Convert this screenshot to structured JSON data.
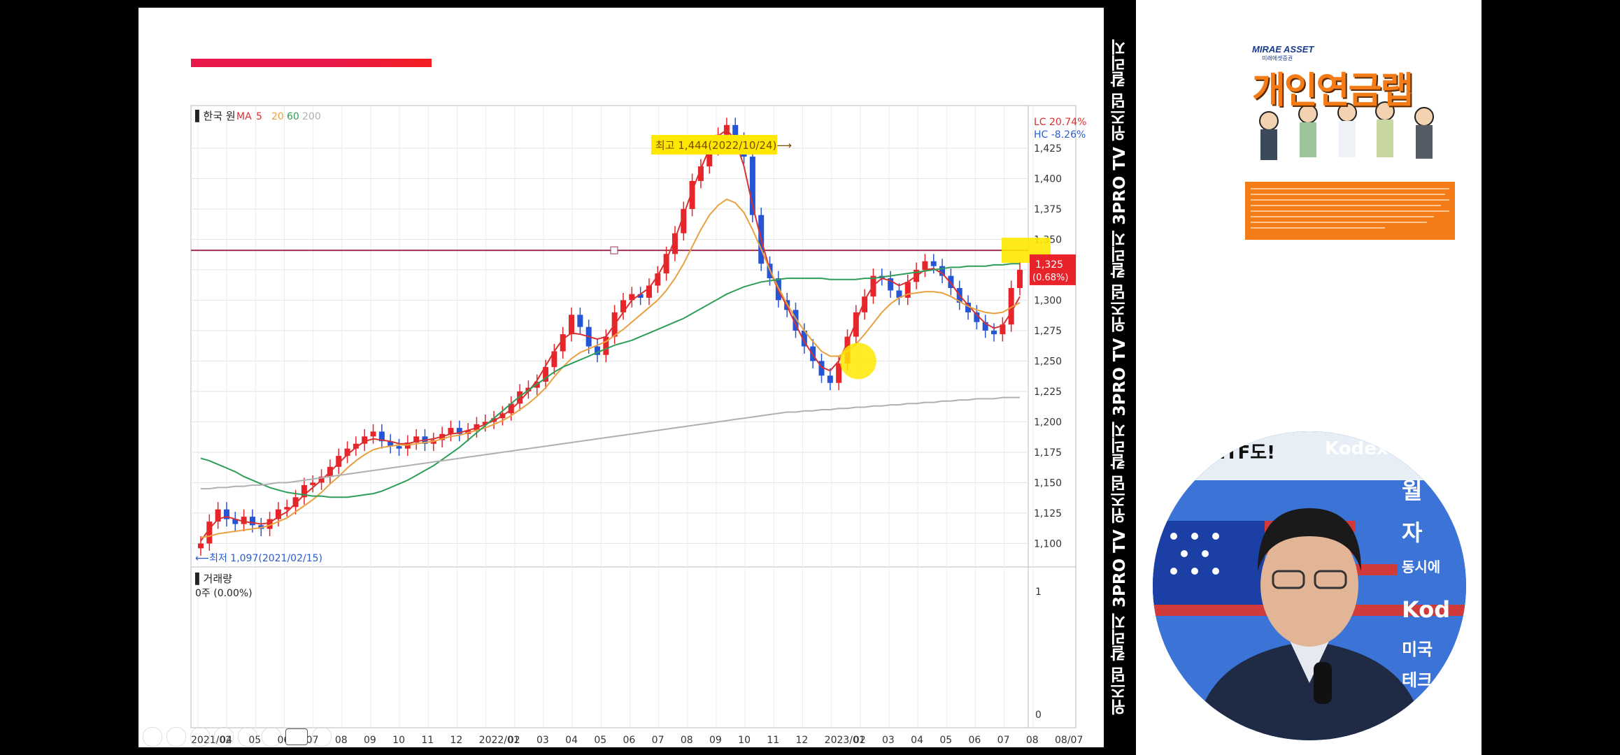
{
  "vertical_channel_text": "위즈덤 칼리지 3PRO TV 위즈덤 칼리지 3PRO TV 위즈덤 칼리지 3PRO TV 위즈덤 칼리지",
  "ad": {
    "brand": "MIRAE ASSET",
    "brand_sub": "미래에셋증권",
    "title": "개인연금랩"
  },
  "webcam": {
    "banner_text": "ETF도!",
    "banner_brand": "Kodex",
    "side_texts": [
      "월",
      "자",
      "동시에",
      "Kod",
      "미국",
      "테크"
    ]
  },
  "chart_data": {
    "type": "candlestick",
    "header": {
      "instrument": "한국 원",
      "ma_label": "MA",
      "ma_periods": [
        "5",
        "20",
        "60",
        "200"
      ],
      "ma_colors": [
        "#d93030",
        "#e8a040",
        "#2e9d5a",
        "#b0b0b0"
      ]
    },
    "lc_label": "LC 20.74%",
    "hc_label": "HC -8.26%",
    "annotation_high": "최고 1,444(2022/10/24)⟶",
    "annotation_low": "⟵최저 1,097(2021/02/15)",
    "ylim": [
      1083,
      1460
    ],
    "y_ticks": [
      "1,425",
      "1,400",
      "1,375",
      "1,350",
      "1,325",
      "1,300",
      "1,275",
      "1,250",
      "1,225",
      "1,200",
      "1,175",
      "1,150",
      "1,125",
      "1,100"
    ],
    "y_tick_values": [
      1425,
      1400,
      1375,
      1350,
      1325,
      1300,
      1275,
      1250,
      1225,
      1200,
      1175,
      1150,
      1125,
      1100
    ],
    "x_labels": [
      "2021/02",
      "04",
      "05",
      "06",
      "07",
      "08",
      "09",
      "10",
      "11",
      "12",
      "2022/01",
      "02",
      "03",
      "04",
      "05",
      "06",
      "07",
      "08",
      "09",
      "10",
      "11",
      "12",
      "2023/01",
      "02",
      "03",
      "04",
      "05",
      "06",
      "07",
      "08",
      "08/07"
    ],
    "horizontal_line_value": 1341,
    "price_box": {
      "value": "1,325",
      "change": "(0.68%)"
    },
    "closes": [
      1100,
      1118,
      1128,
      1120,
      1116,
      1122,
      1115,
      1112,
      1120,
      1128,
      1130,
      1138,
      1148,
      1150,
      1155,
      1163,
      1172,
      1178,
      1182,
      1188,
      1192,
      1184,
      1180,
      1178,
      1183,
      1188,
      1182,
      1185,
      1190,
      1195,
      1190,
      1193,
      1198,
      1200,
      1203,
      1207,
      1215,
      1225,
      1228,
      1233,
      1245,
      1258,
      1272,
      1288,
      1278,
      1262,
      1255,
      1270,
      1290,
      1300,
      1305,
      1302,
      1312,
      1322,
      1338,
      1355,
      1375,
      1398,
      1410,
      1425,
      1436,
      1444,
      1432,
      1418,
      1370,
      1330,
      1318,
      1300,
      1292,
      1275,
      1262,
      1250,
      1238,
      1232,
      1248,
      1270,
      1290,
      1303,
      1320,
      1318,
      1308,
      1302,
      1315,
      1325,
      1332,
      1328,
      1320,
      1310,
      1298,
      1290,
      1282,
      1275,
      1272,
      1280,
      1310,
      1325
    ],
    "ma_series": [
      {
        "period": "5",
        "values": [
          1102,
          1112,
          1120,
          1122,
          1120,
          1118,
          1117,
          1116,
          1117,
          1122,
          1126,
          1133,
          1140,
          1146,
          1152,
          1159,
          1166,
          1173,
          1179,
          1184,
          1186,
          1185,
          1184,
          1182,
          1182,
          1184,
          1185,
          1186,
          1188,
          1190,
          1191,
          1193,
          1195,
          1198,
          1201,
          1205,
          1210,
          1217,
          1225,
          1234,
          1246,
          1258,
          1268,
          1273,
          1272,
          1270,
          1268,
          1270,
          1280,
          1290,
          1300,
          1305,
          1310,
          1320,
          1333,
          1350,
          1370,
          1390,
          1408,
          1425,
          1435,
          1440,
          1432,
          1410,
          1378,
          1350,
          1325,
          1308,
          1295,
          1280,
          1266,
          1255,
          1245,
          1242,
          1250,
          1265,
          1282,
          1300,
          1312,
          1318,
          1316,
          1312,
          1315,
          1320,
          1325,
          1326,
          1322,
          1314,
          1304,
          1296,
          1288,
          1281,
          1277,
          1279,
          1290,
          1303
        ]
      },
      {
        "period": "20",
        "values": [
          1105,
          1106,
          1108,
          1109,
          1110,
          1111,
          1112,
          1113,
          1115,
          1118,
          1121,
          1126,
          1131,
          1136,
          1142,
          1149,
          1155,
          1162,
          1168,
          1173,
          1177,
          1179,
          1180,
          1181,
          1181,
          1182,
          1183,
          1184,
          1186,
          1188,
          1189,
          1191,
          1193,
          1195,
          1198,
          1201,
          1205,
          1210,
          1215,
          1221,
          1228,
          1237,
          1245,
          1252,
          1257,
          1260,
          1263,
          1266,
          1271,
          1276,
          1282,
          1288,
          1294,
          1300,
          1308,
          1318,
          1330,
          1344,
          1358,
          1370,
          1378,
          1383,
          1380,
          1372,
          1358,
          1342,
          1325,
          1310,
          1297,
          1285,
          1275,
          1266,
          1258,
          1254,
          1254,
          1258,
          1264,
          1272,
          1281,
          1290,
          1297,
          1302,
          1305,
          1306,
          1307,
          1307,
          1306,
          1303,
          1299,
          1295,
          1292,
          1290,
          1289,
          1290,
          1294,
          1298
        ]
      },
      {
        "period": "60",
        "values": [
          1170,
          1168,
          1165,
          1162,
          1159,
          1155,
          1152,
          1149,
          1146,
          1144,
          1142,
          1141,
          1140,
          1139,
          1139,
          1138,
          1138,
          1138,
          1139,
          1140,
          1141,
          1143,
          1146,
          1149,
          1152,
          1156,
          1160,
          1164,
          1169,
          1174,
          1179,
          1185,
          1191,
          1197,
          1203,
          1209,
          1215,
          1221,
          1226,
          1231,
          1236,
          1241,
          1245,
          1248,
          1251,
          1254,
          1257,
          1260,
          1263,
          1265,
          1267,
          1270,
          1273,
          1276,
          1279,
          1282,
          1285,
          1289,
          1293,
          1297,
          1301,
          1305,
          1308,
          1311,
          1313,
          1315,
          1316,
          1317,
          1318,
          1318,
          1318,
          1318,
          1318,
          1317,
          1317,
          1317,
          1317,
          1318,
          1318,
          1319,
          1320,
          1321,
          1322,
          1323,
          1324,
          1325,
          1326,
          1327,
          1327,
          1328,
          1328,
          1328,
          1329,
          1329,
          1330,
          1330
        ]
      },
      {
        "period": "200",
        "values": [
          1145,
          1145,
          1146,
          1146,
          1147,
          1147,
          1148,
          1148,
          1149,
          1150,
          1150,
          1151,
          1152,
          1153,
          1154,
          1155,
          1156,
          1157,
          1158,
          1159,
          1160,
          1161,
          1162,
          1163,
          1164,
          1165,
          1166,
          1167,
          1168,
          1169,
          1170,
          1171,
          1172,
          1173,
          1174,
          1175,
          1176,
          1177,
          1178,
          1179,
          1180,
          1181,
          1182,
          1183,
          1184,
          1185,
          1186,
          1187,
          1188,
          1189,
          1190,
          1191,
          1192,
          1193,
          1194,
          1195,
          1196,
          1197,
          1198,
          1199,
          1200,
          1201,
          1202,
          1203,
          1204,
          1205,
          1206,
          1207,
          1208,
          1208,
          1209,
          1209,
          1210,
          1210,
          1211,
          1211,
          1212,
          1212,
          1213,
          1213,
          1214,
          1214,
          1215,
          1215,
          1216,
          1216,
          1217,
          1217,
          1218,
          1218,
          1219,
          1219,
          1219,
          1220,
          1220,
          1220
        ]
      }
    ],
    "volume_label": "거래량",
    "volume_value": "0주 (0.00%)",
    "volume_ticks": [
      "1",
      "0"
    ]
  }
}
